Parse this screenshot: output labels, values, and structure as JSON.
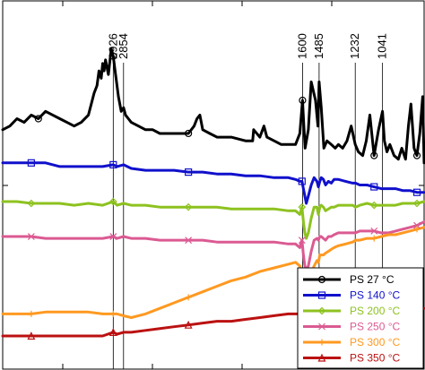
{
  "chart_data": {
    "type": "line",
    "title": "",
    "xlabel": "",
    "ylabel": "",
    "x_axis": {
      "direction": "reversed",
      "range": [
        3700,
        750
      ],
      "tick_labels_shown": false
    },
    "y_axis": {
      "units": "arbitrary (stacked offsets)",
      "range": [
        0,
        100
      ],
      "tick_labels_shown": false
    },
    "grid": false,
    "legend_placement": "bottom-right",
    "annotations": [
      "2926",
      "2854",
      "1600",
      "1485",
      "1232",
      "1041"
    ],
    "annotation_positions": [
      2926,
      2854,
      1600,
      1485,
      1232,
      1041
    ],
    "series": [
      {
        "name": "PS 27 °C",
        "color": "#000000",
        "marker": "circle",
        "x": [
          3700,
          3650,
          3600,
          3550,
          3500,
          3450,
          3400,
          3350,
          3300,
          3250,
          3200,
          3150,
          3100,
          3080,
          3060,
          3040,
          3026,
          3010,
          3000,
          2990,
          2980,
          2960,
          2940,
          2926,
          2910,
          2890,
          2870,
          2854,
          2840,
          2820,
          2800,
          2750,
          2700,
          2650,
          2600,
          2550,
          2500,
          2450,
          2400,
          2360,
          2340,
          2320,
          2300,
          2250,
          2200,
          2100,
          2000,
          1950,
          1943,
          1900,
          1871,
          1850,
          1800,
          1750,
          1700,
          1650,
          1620,
          1601,
          1592,
          1583,
          1560,
          1540,
          1510,
          1493,
          1485,
          1470,
          1452,
          1430,
          1400,
          1372,
          1350,
          1320,
          1290,
          1260,
          1232,
          1210,
          1180,
          1155,
          1130,
          1100,
          1069,
          1041,
          1028,
          1010,
          990,
          960,
          930,
          906,
          880,
          860,
          842,
          820,
          800,
          780,
          760,
          750
        ],
        "y": [
          65,
          66,
          68,
          67,
          69,
          68,
          70,
          69,
          68,
          67,
          66,
          67,
          69,
          72,
          75,
          77,
          81,
          79,
          83,
          81,
          84,
          80,
          87,
          85,
          80,
          74,
          70,
          71,
          69,
          68,
          67,
          66,
          65,
          65,
          64,
          64,
          64,
          64,
          64,
          66,
          68,
          69,
          65,
          64,
          63,
          63,
          62,
          62,
          65,
          63,
          66,
          63,
          62,
          61,
          61,
          61,
          64,
          73,
          66,
          60,
          65,
          78,
          73,
          66,
          78,
          71,
          60,
          62,
          61,
          60,
          61,
          60,
          62,
          66,
          61,
          59,
          58,
          62,
          69,
          58,
          65,
          70,
          62,
          59,
          61,
          58,
          57,
          60,
          57,
          66,
          72,
          60,
          58,
          64,
          74,
          56
        ]
      },
      {
        "name": "PS 140 °C",
        "color": "#1010cc",
        "marker": "square",
        "x": [
          3700,
          3600,
          3500,
          3400,
          3300,
          3200,
          3100,
          3000,
          2926,
          2900,
          2854,
          2800,
          2700,
          2600,
          2500,
          2400,
          2300,
          2200,
          2100,
          2000,
          1900,
          1800,
          1700,
          1650,
          1620,
          1605,
          1595,
          1585,
          1575,
          1560,
          1540,
          1520,
          1500,
          1490,
          1480,
          1470,
          1455,
          1440,
          1420,
          1400,
          1380,
          1350,
          1300,
          1250,
          1230,
          1200,
          1150,
          1100,
          1050,
          1000,
          950,
          900,
          850,
          800,
          750
        ],
        "y": [
          56,
          56,
          56,
          56,
          55,
          55,
          55,
          55,
          55.5,
          55,
          55.5,
          54.5,
          54,
          54,
          54,
          53.5,
          53.5,
          53,
          53,
          52.5,
          52.5,
          52,
          52,
          51.5,
          51,
          51,
          49,
          47,
          45,
          47,
          50,
          52,
          51,
          49.5,
          51,
          52,
          51.5,
          50,
          51,
          50.5,
          51.5,
          51.5,
          51,
          50.5,
          50.5,
          50,
          50,
          49.5,
          49,
          49,
          49,
          48.5,
          48.5,
          48,
          48
        ]
      },
      {
        "name": "PS 200 °C",
        "color": "#8dc21f",
        "marker": "diamond",
        "x": [
          3700,
          3600,
          3500,
          3400,
          3300,
          3200,
          3100,
          3000,
          2926,
          2900,
          2854,
          2800,
          2700,
          2600,
          2500,
          2400,
          2300,
          2200,
          2100,
          2000,
          1900,
          1800,
          1700,
          1650,
          1620,
          1605,
          1595,
          1585,
          1575,
          1560,
          1540,
          1520,
          1500,
          1490,
          1480,
          1470,
          1455,
          1440,
          1420,
          1400,
          1380,
          1350,
          1300,
          1250,
          1230,
          1200,
          1150,
          1100,
          1050,
          1000,
          950,
          900,
          850,
          800,
          750
        ],
        "y": [
          45.5,
          45.5,
          45,
          45,
          45,
          44.5,
          45,
          44.5,
          45.5,
          44.5,
          45,
          44.5,
          44.5,
          44,
          44,
          44,
          44,
          44,
          43.5,
          43.5,
          43.5,
          43.5,
          43,
          43,
          42,
          44,
          40,
          37,
          35.5,
          37,
          41,
          44,
          44,
          42,
          44,
          44.5,
          44,
          43,
          43.5,
          44,
          44,
          44.5,
          44.5,
          44.5,
          44,
          44.5,
          45,
          44.5,
          44.5,
          44.5,
          44.5,
          45,
          45,
          45,
          45.5
        ]
      },
      {
        "name": "PS 250 °C",
        "color": "#db5a92",
        "marker": "x",
        "x": [
          3700,
          3600,
          3500,
          3400,
          3300,
          3200,
          3100,
          3000,
          2926,
          2900,
          2854,
          2800,
          2700,
          2600,
          2500,
          2400,
          2300,
          2200,
          2100,
          2000,
          1900,
          1800,
          1700,
          1650,
          1620,
          1605,
          1595,
          1585,
          1575,
          1560,
          1540,
          1520,
          1500,
          1490,
          1480,
          1470,
          1455,
          1440,
          1420,
          1400,
          1380,
          1350,
          1300,
          1250,
          1230,
          1200,
          1150,
          1100,
          1050,
          1000,
          950,
          900,
          850,
          800,
          750
        ],
        "y": [
          36,
          36,
          36,
          35.5,
          35.5,
          35.5,
          35.5,
          35.5,
          36,
          35.5,
          36,
          35.5,
          35.5,
          35,
          35,
          35,
          35,
          34.5,
          34.5,
          34.5,
          34.5,
          34.5,
          34,
          34,
          33,
          35,
          31,
          28,
          27,
          28,
          32,
          35,
          35.5,
          35,
          36,
          36,
          35.5,
          35,
          36,
          36,
          36.5,
          37,
          37,
          37,
          37,
          37.5,
          37.5,
          37.5,
          37,
          37,
          37.5,
          38,
          38.5,
          39,
          40
        ]
      },
      {
        "name": "PS 300 °C",
        "color": "#ff9920",
        "marker": "plus",
        "x": [
          3700,
          3600,
          3500,
          3400,
          3300,
          3200,
          3100,
          3000,
          2926,
          2900,
          2854,
          2800,
          2750,
          2700,
          2600,
          2500,
          2400,
          2300,
          2200,
          2100,
          2000,
          1900,
          1800,
          1700,
          1650,
          1620,
          1605,
          1595,
          1585,
          1575,
          1560,
          1540,
          1520,
          1500,
          1490,
          1480,
          1470,
          1455,
          1440,
          1420,
          1400,
          1380,
          1350,
          1300,
          1250,
          1230,
          1200,
          1150,
          1100,
          1050,
          1000,
          950,
          900,
          850,
          800,
          750
        ],
        "y": [
          15,
          15,
          15,
          15.5,
          15.5,
          15.5,
          15.5,
          15,
          15,
          15,
          14.5,
          14,
          14.5,
          15,
          16.5,
          18,
          19.5,
          21,
          22.5,
          24,
          25,
          26.5,
          27.5,
          28.5,
          29,
          28,
          26,
          22.5,
          20,
          19,
          21,
          26,
          28,
          29.5,
          29,
          31,
          31,
          31,
          31.5,
          32,
          32.5,
          33,
          33.5,
          34,
          34.5,
          35,
          35,
          35.5,
          35.5,
          36,
          36.5,
          36.5,
          37,
          37.5,
          38,
          38.5
        ]
      },
      {
        "name": "PS 350 °C",
        "color": "#bb1111",
        "marker": "triangle",
        "x": [
          3700,
          3600,
          3500,
          3400,
          3300,
          3200,
          3100,
          3000,
          2926,
          2900,
          2854,
          2800,
          2700,
          2600,
          2500,
          2400,
          2300,
          2200,
          2100,
          2000,
          1900,
          1800,
          1700,
          1650,
          1620,
          1605,
          1595,
          1585,
          1575,
          1560,
          1540,
          1520,
          1500,
          1490,
          1480,
          1470,
          1455,
          1440,
          1420,
          1400,
          1380,
          1350,
          1300,
          1250,
          1230,
          1200,
          1150,
          1100,
          1050,
          1000,
          950,
          900,
          850,
          800,
          750
        ],
        "y": [
          9,
          9,
          9,
          9,
          9,
          9,
          9,
          9,
          10,
          9.5,
          10,
          10,
          10.5,
          11,
          11.5,
          12,
          12.5,
          13,
          13,
          13.5,
          14,
          14.5,
          15,
          15,
          15,
          14,
          13,
          12,
          11.5,
          12,
          14,
          15,
          15.5,
          15.5,
          15.5,
          16,
          16,
          16,
          16,
          16,
          16,
          16,
          16,
          16,
          16,
          16,
          16,
          16,
          16,
          16,
          16,
          16,
          16,
          16.5,
          16.5
        ]
      }
    ]
  }
}
